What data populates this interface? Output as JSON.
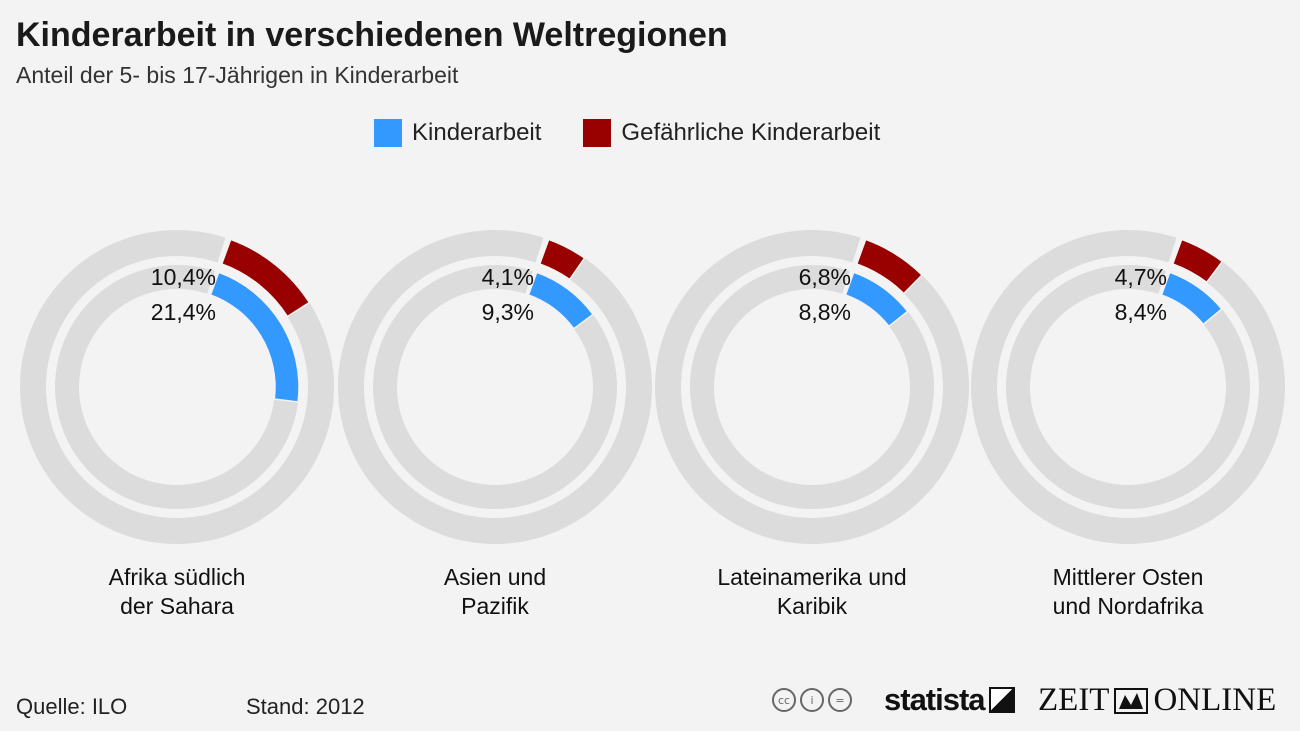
{
  "header": {
    "title": "Kinderarbeit in verschiedenen Weltregionen",
    "subtitle": "Anteil der 5- bis 17-Jährigen in Kinderarbeit"
  },
  "colors": {
    "background": "#f3f3f3",
    "track": "#dcdcdc",
    "kinderarbeit": "#3399ff",
    "gefaehrlich": "#990000"
  },
  "chart_data": {
    "type": "radial-bar",
    "title": "Kinderarbeit in verschiedenen Weltregionen",
    "subtitle": "Anteil der 5- bis 17-Jährigen in Kinderarbeit",
    "unit": "%",
    "scale_max": 100,
    "series": [
      {
        "name": "Kinderarbeit",
        "color": "#3399ff"
      },
      {
        "name": "Gefährliche Kinderarbeit",
        "color": "#990000"
      }
    ],
    "regions": [
      {
        "name_lines": [
          "Afrika südlich",
          "der Sahara"
        ],
        "kinderarbeit": 21.4,
        "gefaehrlich": 10.4,
        "label_gefaehrlich": "10,4%",
        "label_kinderarbeit": "21,4%"
      },
      {
        "name_lines": [
          "Asien und",
          "Pazifik"
        ],
        "kinderarbeit": 9.3,
        "gefaehrlich": 4.1,
        "label_gefaehrlich": "4,1%",
        "label_kinderarbeit": "9,3%"
      },
      {
        "name_lines": [
          "Lateinamerika und",
          "Karibik"
        ],
        "kinderarbeit": 8.8,
        "gefaehrlich": 6.8,
        "label_gefaehrlich": "6,8%",
        "label_kinderarbeit": "8,8%"
      },
      {
        "name_lines": [
          "Mittlerer Osten",
          "und Nordafrika"
        ],
        "kinderarbeit": 8.4,
        "gefaehrlich": 4.7,
        "label_gefaehrlich": "4,7%",
        "label_kinderarbeit": "8,4%"
      }
    ]
  },
  "footer": {
    "source": "Quelle: ILO",
    "stand": "Stand: 2012",
    "cc_icons": [
      "cc-icon",
      "by-icon",
      "nd-icon"
    ],
    "cc_labels": [
      "cc",
      "i",
      "="
    ],
    "brand_statista": "statista",
    "brand_zeit_left": "ZEIT",
    "brand_zeit_right": "ONLINE"
  }
}
